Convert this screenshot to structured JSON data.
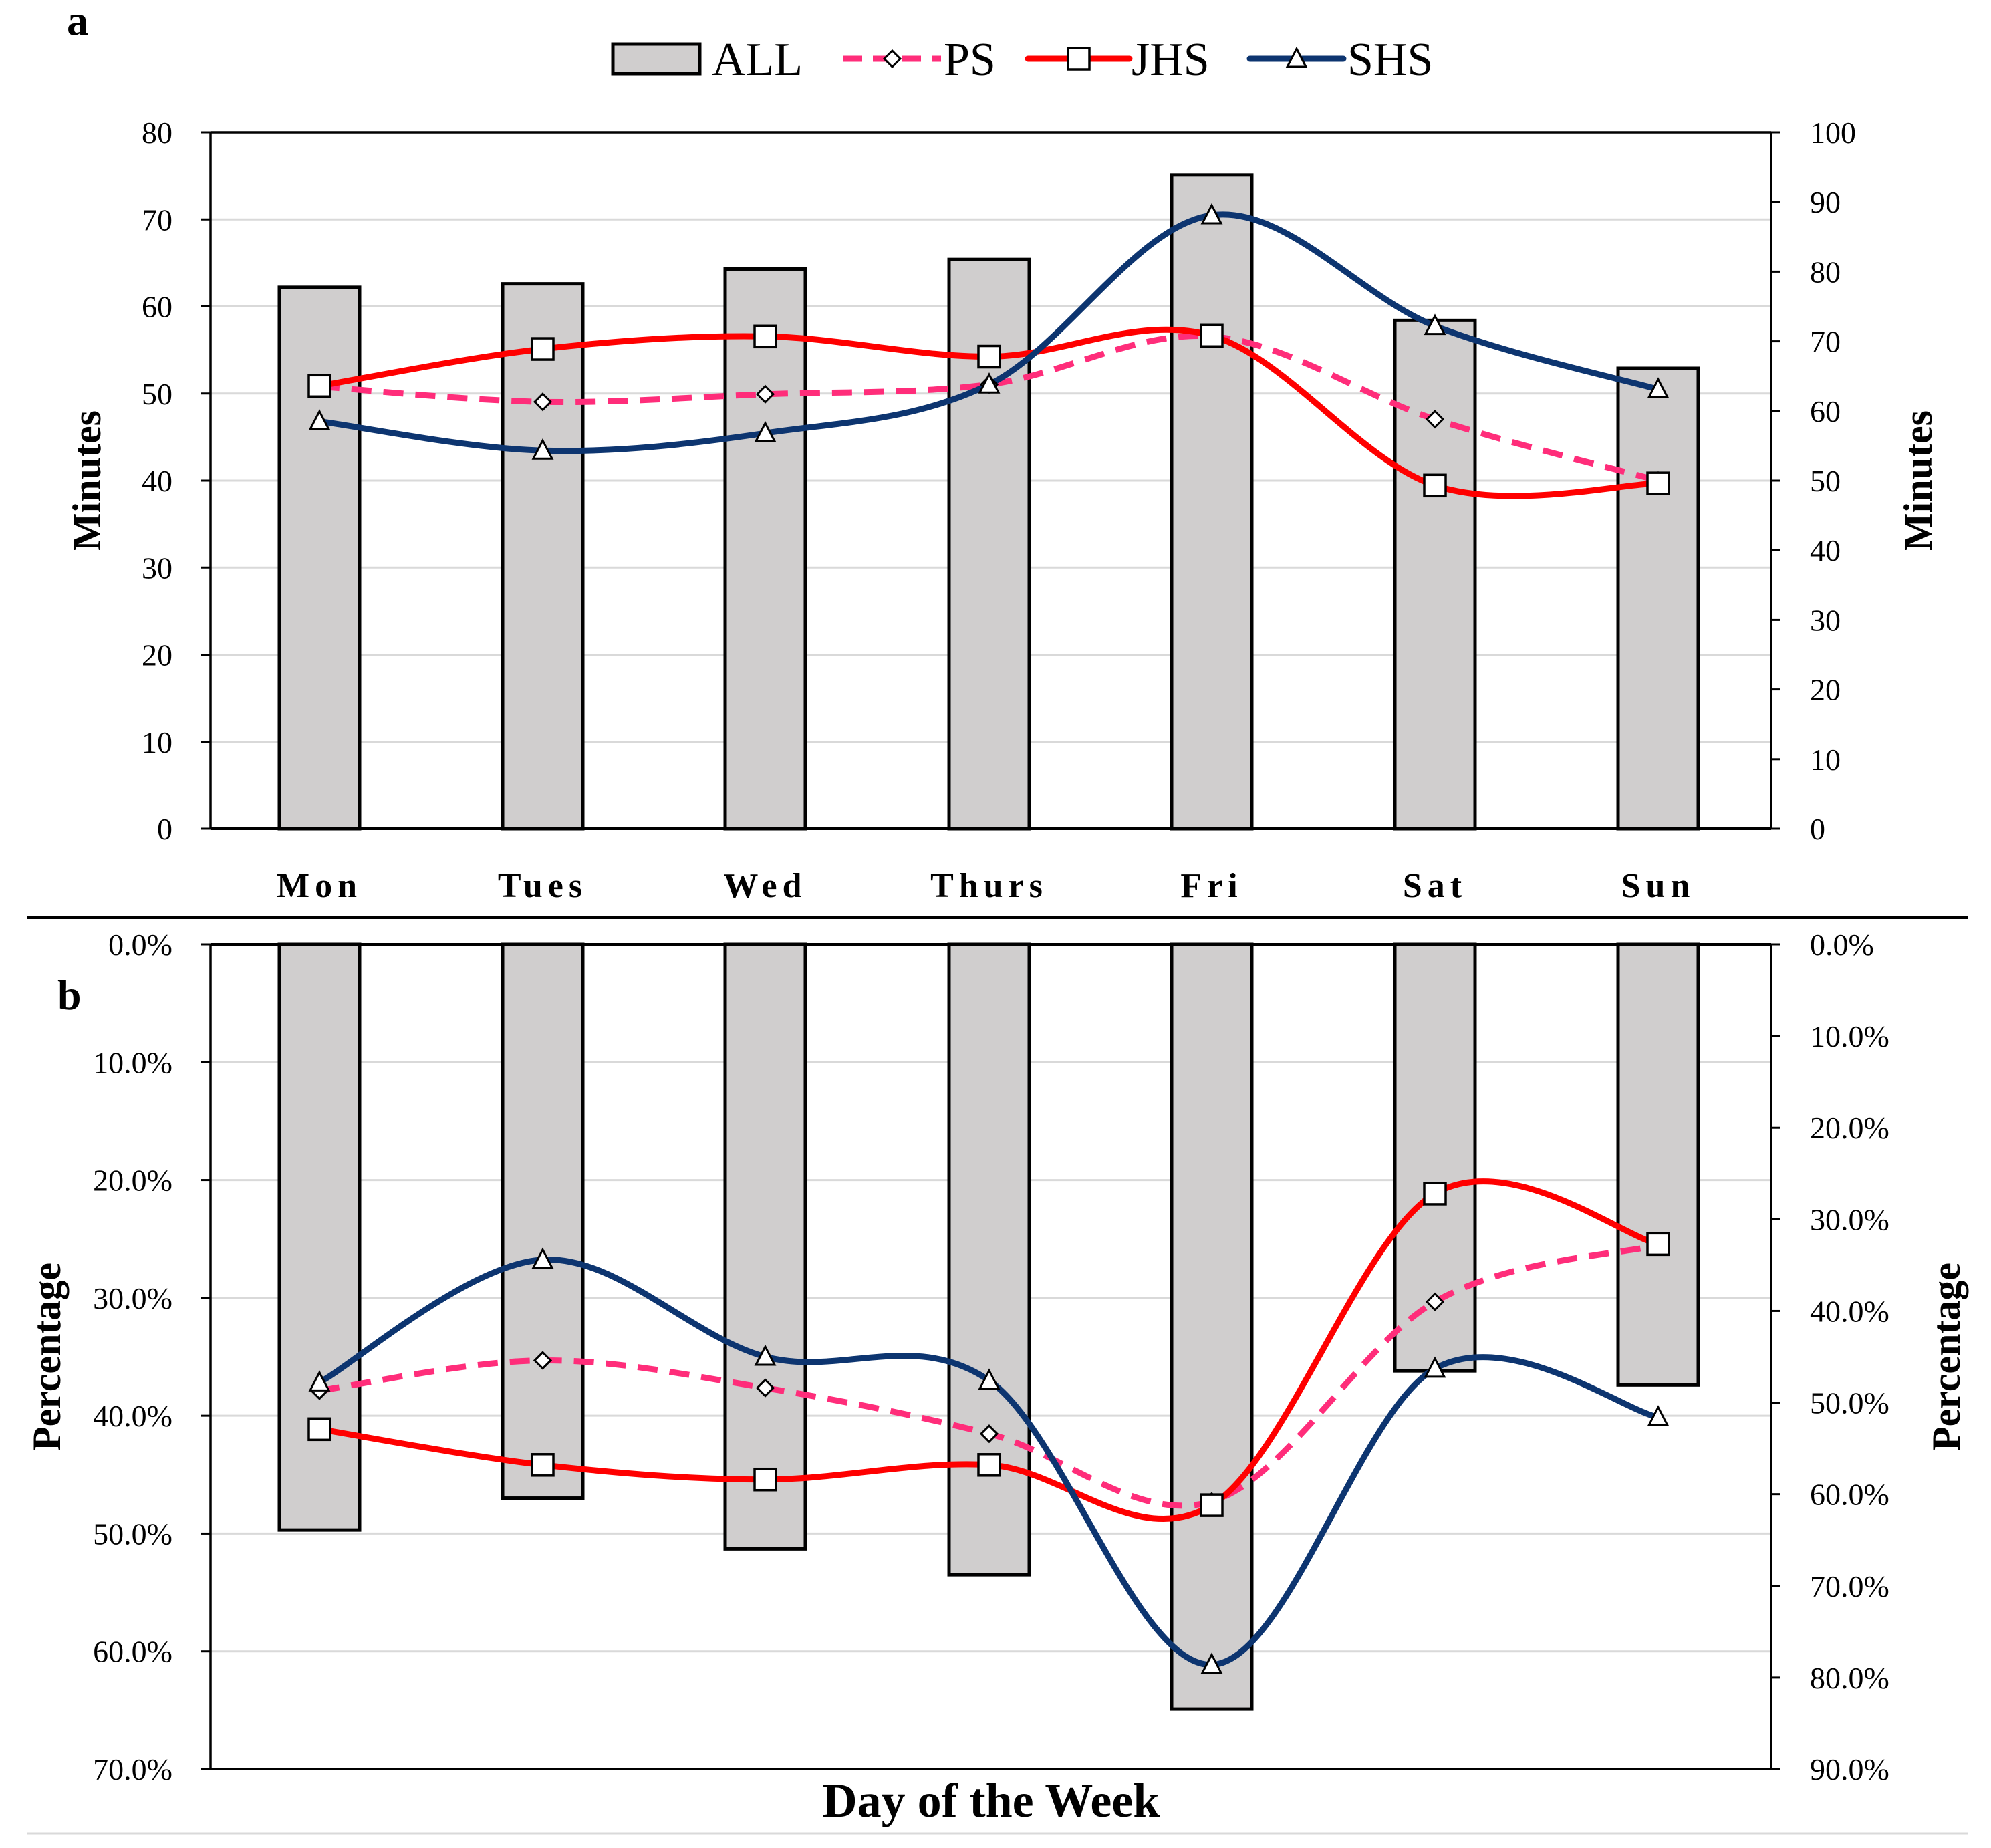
{
  "chart_data": [
    {
      "panel_label": "a",
      "type": "bar+line",
      "categories": [
        "Mon",
        "Tues",
        "Wed",
        "Thurs",
        "Fri",
        "Sat",
        "Sun"
      ],
      "bars": {
        "name": "ALL",
        "axis": "left",
        "values": [
          62.2,
          62.6,
          64.3,
          65.4,
          75.1,
          58.4,
          52.9
        ]
      },
      "series": [
        {
          "name": "PS",
          "axis": "right",
          "style": "dashed",
          "marker": "diamond",
          "color": "#FF2D7A",
          "values": [
            63.5,
            61.3,
            62.4,
            63.8,
            70.7,
            58.8,
            50.0
          ]
        },
        {
          "name": "JHS",
          "axis": "right",
          "style": "solid",
          "marker": "square",
          "color": "#FF0000",
          "values": [
            63.6,
            68.9,
            70.7,
            67.8,
            70.8,
            49.3,
            49.6
          ]
        },
        {
          "name": "SHS",
          "axis": "right",
          "style": "solid",
          "marker": "triangle",
          "color": "#0D3570",
          "values": [
            58.5,
            54.3,
            56.8,
            63.8,
            88.1,
            72.2,
            63.1
          ]
        }
      ],
      "ylabel": "Minutes",
      "y2label": "Minutes",
      "ylim": [
        0,
        80
      ],
      "y2lim": [
        0,
        100
      ],
      "yticks": [
        "0",
        "10",
        "20",
        "30",
        "40",
        "50",
        "60",
        "70",
        "80"
      ],
      "y2ticks": [
        "0",
        "10",
        "20",
        "30",
        "40",
        "50",
        "60",
        "70",
        "80",
        "90",
        "100"
      ],
      "grid": true,
      "legend": "top-center"
    },
    {
      "panel_label": "b",
      "type": "bar+line",
      "orientation": "inverted",
      "categories": [
        "Mon",
        "Tues",
        "Wed",
        "Thurs",
        "Fri",
        "Sat",
        "Sun"
      ],
      "bars": {
        "name": "ALL",
        "axis": "left",
        "values": [
          49.7,
          47.0,
          51.3,
          53.5,
          64.9,
          36.2,
          37.4
        ]
      },
      "series": [
        {
          "name": "PS",
          "axis": "right",
          "style": "dashed",
          "marker": "diamond",
          "color": "#FF2D7A",
          "values": [
            48.7,
            45.4,
            48.4,
            53.4,
            60.8,
            39.0,
            32.8
          ]
        },
        {
          "name": "JHS",
          "axis": "right",
          "style": "solid",
          "marker": "square",
          "color": "#FF0000",
          "values": [
            52.9,
            56.8,
            58.4,
            56.8,
            61.2,
            27.2,
            32.7
          ]
        },
        {
          "name": "SHS",
          "axis": "right",
          "style": "solid",
          "marker": "triangle",
          "color": "#0D3570",
          "values": [
            47.8,
            34.4,
            45.0,
            47.6,
            78.6,
            46.3,
            51.6
          ]
        }
      ],
      "ylabel": "Percentage",
      "y2label": "Percentage",
      "ylim": [
        0,
        70
      ],
      "y2lim": [
        0,
        90
      ],
      "yticks": [
        "0.0%",
        "10.0%",
        "20.0%",
        "30.0%",
        "40.0%",
        "50.0%",
        "60.0%",
        "70.0%"
      ],
      "y2ticks": [
        "0.0%",
        "10.0%",
        "20.0%",
        "30.0%",
        "40.0%",
        "50.0%",
        "60.0%",
        "70.0%",
        "80.0%",
        "90.0%"
      ],
      "xlabel": "Day of the Week",
      "grid": true
    }
  ],
  "legend": {
    "entries": [
      "ALL",
      "PS",
      "JHS",
      "SHS"
    ],
    "colors": {
      "ALL": "#D0CECE",
      "PS": "#FF2D7A",
      "JHS": "#FF0000",
      "SHS": "#0D3570"
    }
  }
}
